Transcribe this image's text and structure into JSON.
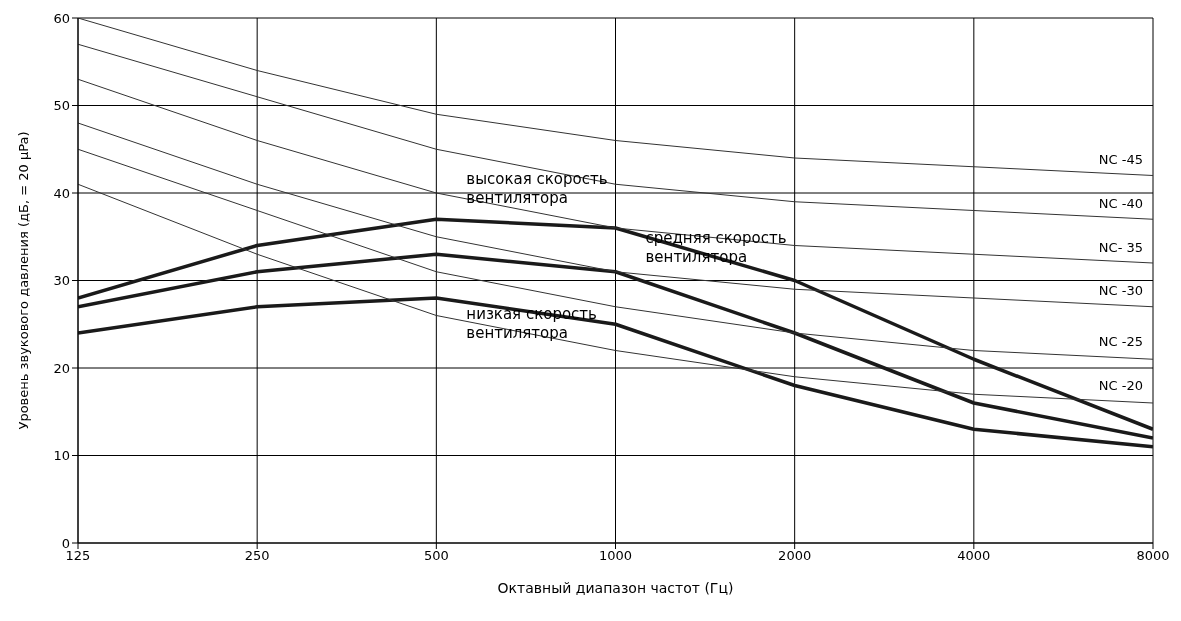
{
  "chart_data": {
    "type": "line",
    "xlabel": "Октавный диапазон частот (Гц)",
    "ylabel": "Уровень звукового давления (дБ, = 20 μPa)",
    "categories": [
      "125",
      "250",
      "500",
      "1000",
      "2000",
      "4000",
      "8000"
    ],
    "ylim": [
      0,
      60
    ],
    "yticks": [
      0,
      10,
      20,
      30,
      40,
      50,
      60
    ],
    "grid": true,
    "marker": "none",
    "line_style": "solid",
    "series": [
      {
        "color": "#1a1a1a",
        "values": [
          28,
          34,
          37,
          36,
          30,
          21,
          13
        ]
      },
      {
        "color": "#1a1a1a",
        "values": [
          27,
          31,
          33,
          31,
          24,
          16,
          12
        ]
      },
      {
        "color": "#1a1a1a",
        "values": [
          24,
          27,
          28,
          25,
          18,
          13,
          11
        ]
      },
      {
        "color": "#333333",
        "values": [
          60,
          54,
          49,
          46,
          44,
          43,
          42
        ]
      },
      {
        "color": "#333333",
        "values": [
          57,
          51,
          45,
          41,
          39,
          38,
          37
        ]
      },
      {
        "color": "#333333",
        "values": [
          53,
          46,
          40,
          36,
          34,
          33,
          32
        ]
      },
      {
        "color": "#333333",
        "values": [
          48,
          41,
          35,
          31,
          29,
          28,
          27
        ]
      },
      {
        "color": "#333333",
        "values": [
          45,
          38,
          31,
          27,
          24,
          22,
          21
        ]
      },
      {
        "color": "#333333",
        "values": [
          41,
          33,
          26,
          22,
          19,
          17,
          16
        ]
      }
    ],
    "annotations": [
      "высокая скорость вентилятора",
      "средняя скорость вентилятора",
      "низкая скорость вентилятора",
      "NC -45",
      "NC -40",
      "NC- 35",
      "NC -30",
      "NC -25",
      "NC -20"
    ]
  }
}
